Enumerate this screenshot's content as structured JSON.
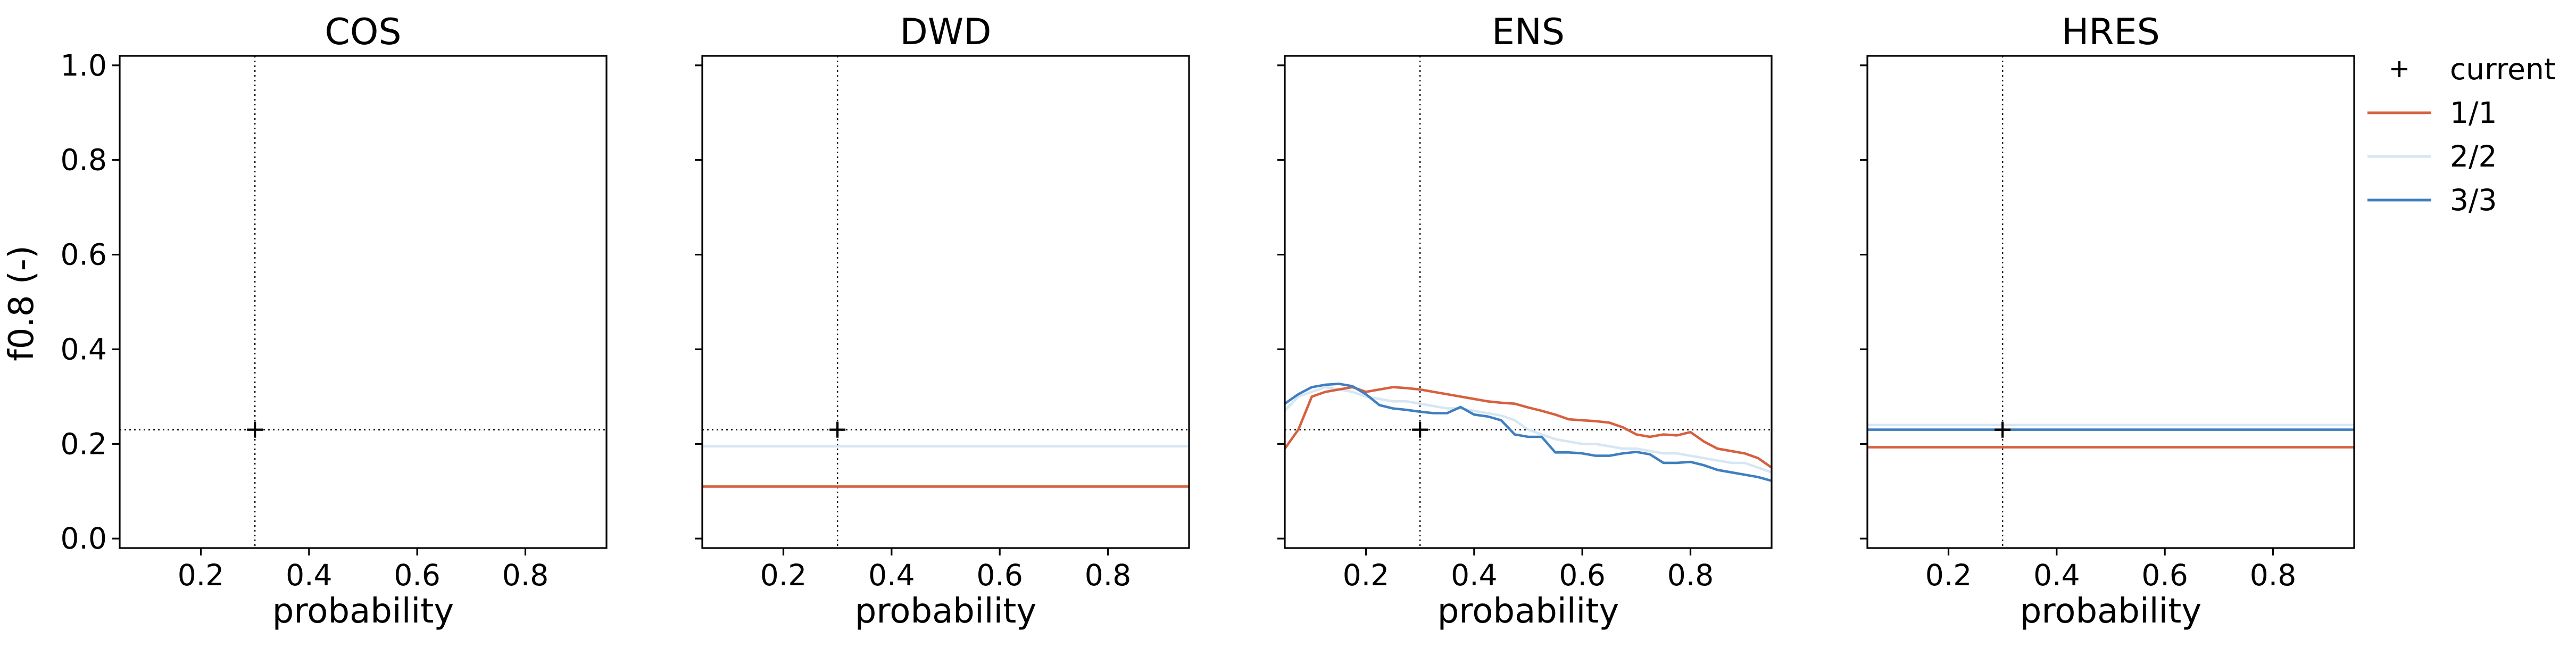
{
  "chart_data": {
    "type": "line",
    "ylabel": "f0.8 (-)",
    "xlabel": "probability",
    "xlim": [
      0.05,
      0.95
    ],
    "ylim": [
      -0.02,
      1.02
    ],
    "xticks": [
      0.2,
      0.4,
      0.6,
      0.8
    ],
    "xtick_labels": [
      "0.2",
      "0.4",
      "0.6",
      "0.8"
    ],
    "yticks": [
      0.0,
      0.2,
      0.4,
      0.6,
      0.8,
      1.0
    ],
    "ytick_labels": [
      "0.0",
      "0.2",
      "0.4",
      "0.6",
      "0.8",
      "1.0"
    ],
    "current": {
      "x": 0.3,
      "y": 0.23
    },
    "grid": false,
    "legend": {
      "placement": "outside-right",
      "entries": [
        {
          "label": "current",
          "kind": "marker"
        },
        {
          "label": "1/1",
          "color": "#d6603f"
        },
        {
          "label": "2/2",
          "color": "#d7e6f4"
        },
        {
          "label": "3/3",
          "color": "#3f7fbf"
        }
      ]
    },
    "panels": [
      {
        "title": "COS",
        "series": []
      },
      {
        "title": "DWD",
        "series": [
          {
            "name": "1/1",
            "color": "#d6603f",
            "x": [
              0.05,
              0.95
            ],
            "y": [
              0.11,
              0.11
            ]
          },
          {
            "name": "2/2",
            "color": "#d7e6f4",
            "x": [
              0.05,
              0.95
            ],
            "y": [
              0.195,
              0.195
            ]
          }
        ]
      },
      {
        "title": "ENS",
        "series": [
          {
            "name": "2/2",
            "color": "#d7e6f4",
            "x": [
              0.05,
              0.075,
              0.1,
              0.125,
              0.15,
              0.175,
              0.2,
              0.225,
              0.25,
              0.275,
              0.3,
              0.325,
              0.35,
              0.375,
              0.4,
              0.425,
              0.45,
              0.475,
              0.5,
              0.525,
              0.55,
              0.575,
              0.6,
              0.625,
              0.65,
              0.675,
              0.7,
              0.725,
              0.75,
              0.775,
              0.8,
              0.825,
              0.85,
              0.875,
              0.9,
              0.925,
              0.95
            ],
            "y": [
              0.27,
              0.3,
              0.31,
              0.32,
              0.315,
              0.31,
              0.3,
              0.295,
              0.29,
              0.29,
              0.285,
              0.28,
              0.275,
              0.275,
              0.27,
              0.265,
              0.26,
              0.25,
              0.23,
              0.22,
              0.21,
              0.205,
              0.2,
              0.2,
              0.195,
              0.19,
              0.19,
              0.185,
              0.18,
              0.18,
              0.175,
              0.17,
              0.165,
              0.16,
              0.16,
              0.15,
              0.14
            ]
          },
          {
            "name": "1/1",
            "color": "#d6603f",
            "x": [
              0.05,
              0.075,
              0.1,
              0.125,
              0.15,
              0.175,
              0.2,
              0.225,
              0.25,
              0.275,
              0.3,
              0.325,
              0.35,
              0.375,
              0.4,
              0.425,
              0.45,
              0.475,
              0.5,
              0.525,
              0.55,
              0.575,
              0.6,
              0.625,
              0.65,
              0.675,
              0.7,
              0.725,
              0.75,
              0.775,
              0.8,
              0.825,
              0.85,
              0.875,
              0.9,
              0.925,
              0.95
            ],
            "y": [
              0.19,
              0.23,
              0.3,
              0.31,
              0.315,
              0.32,
              0.31,
              0.315,
              0.32,
              0.318,
              0.315,
              0.31,
              0.305,
              0.3,
              0.295,
              0.29,
              0.287,
              0.285,
              0.277,
              0.27,
              0.262,
              0.252,
              0.25,
              0.248,
              0.245,
              0.235,
              0.22,
              0.215,
              0.22,
              0.218,
              0.225,
              0.205,
              0.19,
              0.185,
              0.18,
              0.17,
              0.15
            ]
          },
          {
            "name": "3/3",
            "color": "#3f7fbf",
            "x": [
              0.05,
              0.075,
              0.1,
              0.125,
              0.15,
              0.175,
              0.2,
              0.225,
              0.25,
              0.275,
              0.3,
              0.325,
              0.35,
              0.375,
              0.4,
              0.425,
              0.45,
              0.475,
              0.5,
              0.525,
              0.55,
              0.575,
              0.6,
              0.625,
              0.65,
              0.675,
              0.7,
              0.725,
              0.75,
              0.775,
              0.8,
              0.825,
              0.85,
              0.875,
              0.9,
              0.925,
              0.95
            ],
            "y": [
              0.285,
              0.305,
              0.32,
              0.325,
              0.327,
              0.322,
              0.305,
              0.282,
              0.275,
              0.272,
              0.268,
              0.265,
              0.265,
              0.278,
              0.262,
              0.258,
              0.25,
              0.22,
              0.215,
              0.215,
              0.182,
              0.182,
              0.18,
              0.175,
              0.175,
              0.18,
              0.183,
              0.178,
              0.16,
              0.16,
              0.162,
              0.155,
              0.145,
              0.14,
              0.135,
              0.13,
              0.122
            ]
          }
        ]
      },
      {
        "title": "HRES",
        "series": [
          {
            "name": "1/1",
            "color": "#d6603f",
            "x": [
              0.05,
              0.95
            ],
            "y": [
              0.193,
              0.193
            ]
          },
          {
            "name": "2/2",
            "color": "#d7e6f4",
            "x": [
              0.05,
              0.95
            ],
            "y": [
              0.24,
              0.24
            ]
          },
          {
            "name": "3/3",
            "color": "#3f7fbf",
            "x": [
              0.05,
              0.95
            ],
            "y": [
              0.23,
              0.23
            ]
          }
        ]
      }
    ]
  }
}
